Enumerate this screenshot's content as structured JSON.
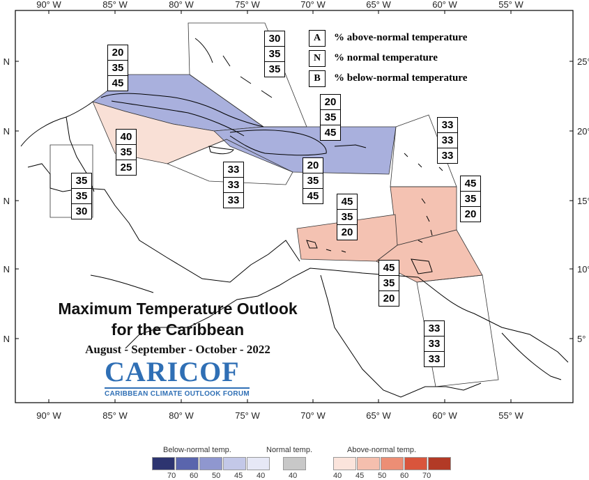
{
  "map": {
    "title": "Maximum Temperature Outlook",
    "title_line2": "for the Caribbean",
    "season": "August - September - October - 2022",
    "lon_ticks": [
      "90° W",
      "85° W",
      "80° W",
      "75° W",
      "70° W",
      "65° W",
      "60° W",
      "55° W"
    ],
    "lat_ticks_left": [
      "N",
      "N",
      "N",
      "N",
      "N"
    ],
    "lat_ticks_right": [
      "25°",
      "20°",
      "15°",
      "10°",
      "5°"
    ]
  },
  "key": {
    "rows": [
      {
        "letter": "A",
        "text": "% above-normal temperature"
      },
      {
        "letter": "N",
        "text": "% normal temperature"
      },
      {
        "letter": "B",
        "text": "% below-normal temperature"
      }
    ]
  },
  "regions": [
    {
      "name": "bahamas",
      "values": [
        "30",
        "35",
        "35"
      ],
      "category": "normal"
    },
    {
      "name": "cuba",
      "values": [
        "20",
        "35",
        "45"
      ],
      "category": "below"
    },
    {
      "name": "cayman",
      "values": [
        "40",
        "35",
        "25"
      ],
      "category": "above"
    },
    {
      "name": "jamaica",
      "values": [
        "33",
        "33",
        "33"
      ],
      "category": "normal"
    },
    {
      "name": "hispaniola-north",
      "values": [
        "20",
        "35",
        "45"
      ],
      "category": "below"
    },
    {
      "name": "hispaniola-south",
      "values": [
        "20",
        "35",
        "45"
      ],
      "category": "below"
    },
    {
      "name": "northern-antilles",
      "values": [
        "33",
        "33",
        "33"
      ],
      "category": "normal"
    },
    {
      "name": "belize",
      "values": [
        "35",
        "35",
        "30"
      ],
      "category": "normal"
    },
    {
      "name": "leeward-islands",
      "values": [
        "45",
        "35",
        "20"
      ],
      "category": "above"
    },
    {
      "name": "abc-islands",
      "values": [
        "45",
        "35",
        "20"
      ],
      "category": "above"
    },
    {
      "name": "trinidad-windwards",
      "values": [
        "45",
        "35",
        "20"
      ],
      "category": "above"
    },
    {
      "name": "guianas",
      "values": [
        "33",
        "33",
        "33"
      ],
      "category": "normal"
    }
  ],
  "logo": {
    "name": "CARICOF",
    "subtitle": "CARIBBEAN CLIMATE OUTLOOK FORUM"
  },
  "colors": {
    "below_fill": "#a9b0dd",
    "above_fill": "#f4c2b2",
    "above_light_fill": "#f9e0d6",
    "coast": "#000000"
  },
  "scale": {
    "below_label": "Below-normal temp.",
    "below_ticks": [
      "70",
      "60",
      "50",
      "45",
      "40"
    ],
    "below_colors": [
      "#2d3470",
      "#5a65ad",
      "#8f97cf",
      "#c3c8e8",
      "#e6e8f6"
    ],
    "normal_label": "Normal temp.",
    "normal_ticks": [
      "40"
    ],
    "normal_colors": [
      "#c8c8c8"
    ],
    "above_label": "Above-normal temp.",
    "above_ticks": [
      "40",
      "45",
      "50",
      "60",
      "70"
    ],
    "above_colors": [
      "#fbe4dc",
      "#f5bfae",
      "#ec8e75",
      "#d9553c",
      "#b23a26"
    ]
  }
}
